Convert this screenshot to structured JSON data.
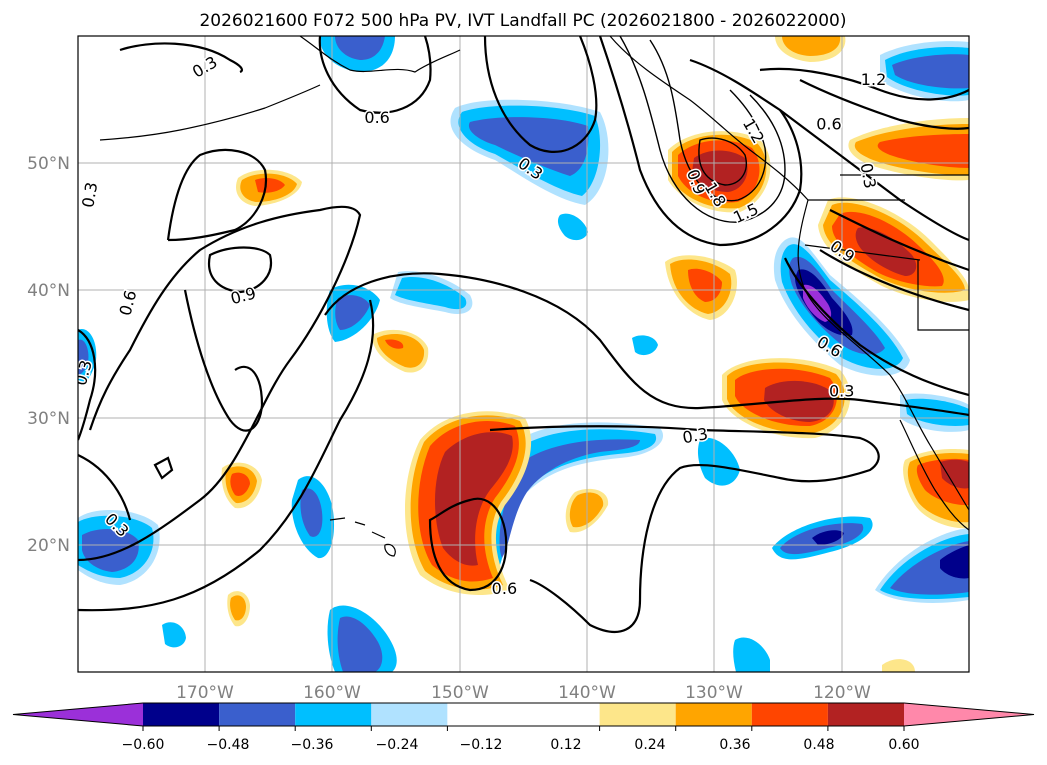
{
  "chart_data": {
    "type": "filled-contour map",
    "title": "2026021600 F072 500 hPa PV, IVT Landfall PC (2026021800 - 2026022000)",
    "x_ticks": [
      "170°W",
      "160°W",
      "150°W",
      "140°W",
      "130°W",
      "120°W"
    ],
    "x_tick_values": [
      -170,
      -160,
      -150,
      -140,
      -130,
      -120
    ],
    "y_ticks": [
      "50°N",
      "40°N",
      "30°N",
      "20°N"
    ],
    "y_tick_values": [
      50,
      40,
      30,
      20
    ],
    "lon_range": [
      -180,
      -110
    ],
    "lat_range": [
      10,
      60
    ],
    "colorbar": {
      "tick_labels": [
        "−0.60",
        "−0.48",
        "−0.36",
        "−0.24",
        "−0.12",
        "0.12",
        "0.24",
        "0.36",
        "0.48",
        "0.60"
      ],
      "levels": [
        -0.6,
        -0.48,
        -0.36,
        -0.24,
        -0.12,
        0.12,
        0.24,
        0.36,
        0.48,
        0.6
      ],
      "colors": [
        "#9b30d9",
        "#00008b",
        "#3a5fcd",
        "#00bfff",
        "#b0e2ff",
        "#ffffff",
        "#fde68a",
        "#ffa500",
        "#ff4500",
        "#b22222",
        "#ff88aa"
      ],
      "extend": "both"
    },
    "contour_labels": [
      {
        "text": "0.3",
        "lon": -170,
        "lat": 57.5,
        "rot": -30
      },
      {
        "text": "0.6",
        "lon": -156.5,
        "lat": 53.5,
        "rot": 0
      },
      {
        "text": "0.3",
        "lon": -144.5,
        "lat": 49.5,
        "rot": 35
      },
      {
        "text": "0.9",
        "lon": -131.5,
        "lat": 48.5,
        "rot": 70
      },
      {
        "text": "1.8",
        "lon": -130,
        "lat": 47.5,
        "rot": 60
      },
      {
        "text": "1.5",
        "lon": -127.5,
        "lat": 46,
        "rot": -25
      },
      {
        "text": "1.2",
        "lon": -127,
        "lat": 52.5,
        "rot": 60
      },
      {
        "text": "0.6",
        "lon": -121,
        "lat": 53,
        "rot": 0
      },
      {
        "text": "1.2",
        "lon": -117.5,
        "lat": 56.5,
        "rot": 0
      },
      {
        "text": "0.3",
        "lon": -118,
        "lat": 49,
        "rot": 80
      },
      {
        "text": "0.9",
        "lon": -120,
        "lat": 43,
        "rot": 35
      },
      {
        "text": "0.6",
        "lon": -121,
        "lat": 35.5,
        "rot": 30
      },
      {
        "text": "0.3",
        "lon": -120,
        "lat": 32,
        "rot": 0
      },
      {
        "text": "0.3",
        "lon": -179,
        "lat": 47.5,
        "rot": -80
      },
      {
        "text": "0.6",
        "lon": -176,
        "lat": 39,
        "rot": -75
      },
      {
        "text": "0.9",
        "lon": -167,
        "lat": 39.5,
        "rot": -15
      },
      {
        "text": "0.3",
        "lon": -179.5,
        "lat": 33.5,
        "rot": -75
      },
      {
        "text": "0.3",
        "lon": -177,
        "lat": 21.5,
        "rot": 45
      },
      {
        "text": "0.3",
        "lon": -131.5,
        "lat": 28.5,
        "rot": -10
      },
      {
        "text": "0.6",
        "lon": -146.5,
        "lat": 16.5,
        "rot": 0
      }
    ]
  }
}
